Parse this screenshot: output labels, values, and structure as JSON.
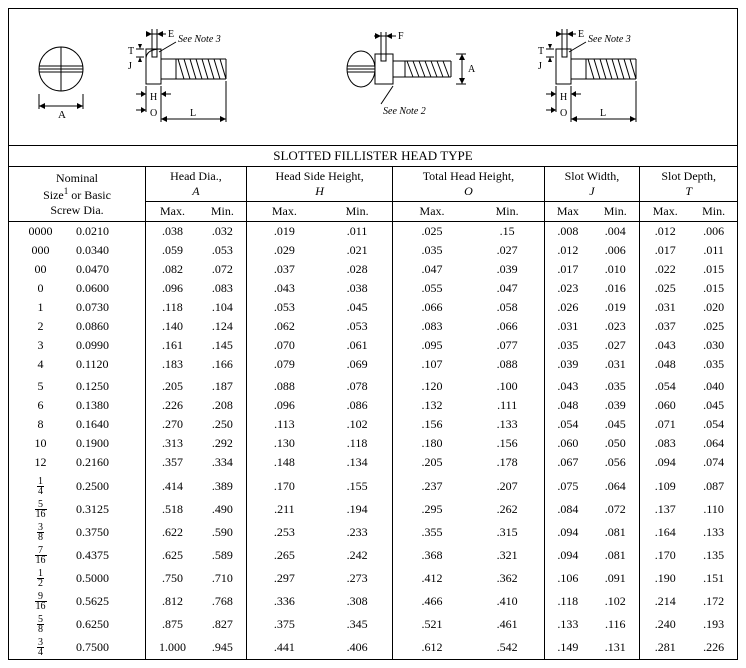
{
  "title": "SLOTTED FILLISTER HEAD TYPE",
  "diagram_labels": {
    "A": "A",
    "E": "E",
    "T": "T",
    "J": "J",
    "H": "H",
    "O": "O",
    "L": "L",
    "F": "F",
    "note2": "See Note 2",
    "note3": "See Note 3"
  },
  "headers": {
    "nominal": "Nominal Size¹ or Basic Screw Dia.",
    "groups": [
      {
        "label": "Head Dia.,",
        "letter": "A"
      },
      {
        "label": "Head Side Height,",
        "letter": "H"
      },
      {
        "label": "Total Head Height,",
        "letter": "O"
      },
      {
        "label": "Slot Width,",
        "letter": "J"
      },
      {
        "label": "Slot Depth,",
        "letter": "T"
      }
    ],
    "max": "Max.",
    "min": "Min.",
    "max_nodot": "Max"
  },
  "rows": [
    {
      "size": "0000",
      "dia": "0.0210",
      "v": [
        ".038",
        ".032",
        ".019",
        ".011",
        ".025",
        ".15",
        ".008",
        ".004",
        ".012",
        ".006"
      ]
    },
    {
      "size": "000",
      "dia": "0.0340",
      "v": [
        ".059",
        ".053",
        ".029",
        ".021",
        ".035",
        ".027",
        ".012",
        ".006",
        ".017",
        ".011"
      ]
    },
    {
      "size": "00",
      "dia": "0.0470",
      "v": [
        ".082",
        ".072",
        ".037",
        ".028",
        ".047",
        ".039",
        ".017",
        ".010",
        ".022",
        ".015"
      ]
    },
    {
      "size": "0",
      "dia": "0.0600",
      "v": [
        ".096",
        ".083",
        ".043",
        ".038",
        ".055",
        ".047",
        ".023",
        ".016",
        ".025",
        ".015"
      ]
    },
    {
      "size": "1",
      "dia": "0.0730",
      "v": [
        ".118",
        ".104",
        ".053",
        ".045",
        ".066",
        ".058",
        ".026",
        ".019",
        ".031",
        ".020"
      ]
    },
    {
      "size": "2",
      "dia": "0.0860",
      "v": [
        ".140",
        ".124",
        ".062",
        ".053",
        ".083",
        ".066",
        ".031",
        ".023",
        ".037",
        ".025"
      ]
    },
    {
      "size": "3",
      "dia": "0.0990",
      "v": [
        ".161",
        ".145",
        ".070",
        ".061",
        ".095",
        ".077",
        ".035",
        ".027",
        ".043",
        ".030"
      ]
    },
    {
      "size": "4",
      "dia": "0.1120",
      "v": [
        ".183",
        ".166",
        ".079",
        ".069",
        ".107",
        ".088",
        ".039",
        ".031",
        ".048",
        ".035"
      ]
    },
    {
      "size": "5",
      "dia": "0.1250",
      "v": [
        ".205",
        ".187",
        ".088",
        ".078",
        ".120",
        ".100",
        ".043",
        ".035",
        ".054",
        ".040"
      ],
      "mid": true
    },
    {
      "size": "6",
      "dia": "0.1380",
      "v": [
        ".226",
        ".208",
        ".096",
        ".086",
        ".132",
        ".111",
        ".048",
        ".039",
        ".060",
        ".045"
      ]
    },
    {
      "size": "8",
      "dia": "0.1640",
      "v": [
        ".270",
        ".250",
        ".113",
        ".102",
        ".156",
        ".133",
        ".054",
        ".045",
        ".071",
        ".054"
      ]
    },
    {
      "size": "10",
      "dia": "0.1900",
      "v": [
        ".313",
        ".292",
        ".130",
        ".118",
        ".180",
        ".156",
        ".060",
        ".050",
        ".083",
        ".064"
      ]
    },
    {
      "size": "12",
      "dia": "0.2160",
      "v": [
        ".357",
        ".334",
        ".148",
        ".134",
        ".205",
        ".178",
        ".067",
        ".056",
        ".094",
        ".074"
      ]
    },
    {
      "size": "1/4",
      "frac": true,
      "dia": "0.2500",
      "v": [
        ".414",
        ".389",
        ".170",
        ".155",
        ".237",
        ".207",
        ".075",
        ".064",
        ".109",
        ".087"
      ],
      "mid": true
    },
    {
      "size": "5/16",
      "frac": true,
      "dia": "0.3125",
      "v": [
        ".518",
        ".490",
        ".211",
        ".194",
        ".295",
        ".262",
        ".084",
        ".072",
        ".137",
        ".110"
      ]
    },
    {
      "size": "3/8",
      "frac": true,
      "dia": "0.3750",
      "v": [
        ".622",
        ".590",
        ".253",
        ".233",
        ".355",
        ".315",
        ".094",
        ".081",
        ".164",
        ".133"
      ]
    },
    {
      "size": "7/16",
      "frac": true,
      "dia": "0.4375",
      "v": [
        ".625",
        ".589",
        ".265",
        ".242",
        ".368",
        ".321",
        ".094",
        ".081",
        ".170",
        ".135"
      ]
    },
    {
      "size": "1/2",
      "frac": true,
      "dia": "0.5000",
      "v": [
        ".750",
        ".710",
        ".297",
        ".273",
        ".412",
        ".362",
        ".106",
        ".091",
        ".190",
        ".151"
      ]
    },
    {
      "size": "9/16",
      "frac": true,
      "dia": "0.5625",
      "v": [
        ".812",
        ".768",
        ".336",
        ".308",
        ".466",
        ".410",
        ".118",
        ".102",
        ".214",
        ".172"
      ]
    },
    {
      "size": "5/8",
      "frac": true,
      "dia": "0.6250",
      "v": [
        ".875",
        ".827",
        ".375",
        ".345",
        ".521",
        ".461",
        ".133",
        ".116",
        ".240",
        ".193"
      ]
    },
    {
      "size": "3/4",
      "frac": true,
      "dia": "0.7500",
      "v": [
        "1.000",
        ".945",
        ".441",
        ".406",
        ".612",
        ".542",
        ".149",
        ".131",
        ".281",
        ".226"
      ]
    }
  ],
  "style": {
    "font_family": "Times New Roman, serif",
    "font_size_pt": 12,
    "border_color": "#000000",
    "background": "#ffffff"
  }
}
